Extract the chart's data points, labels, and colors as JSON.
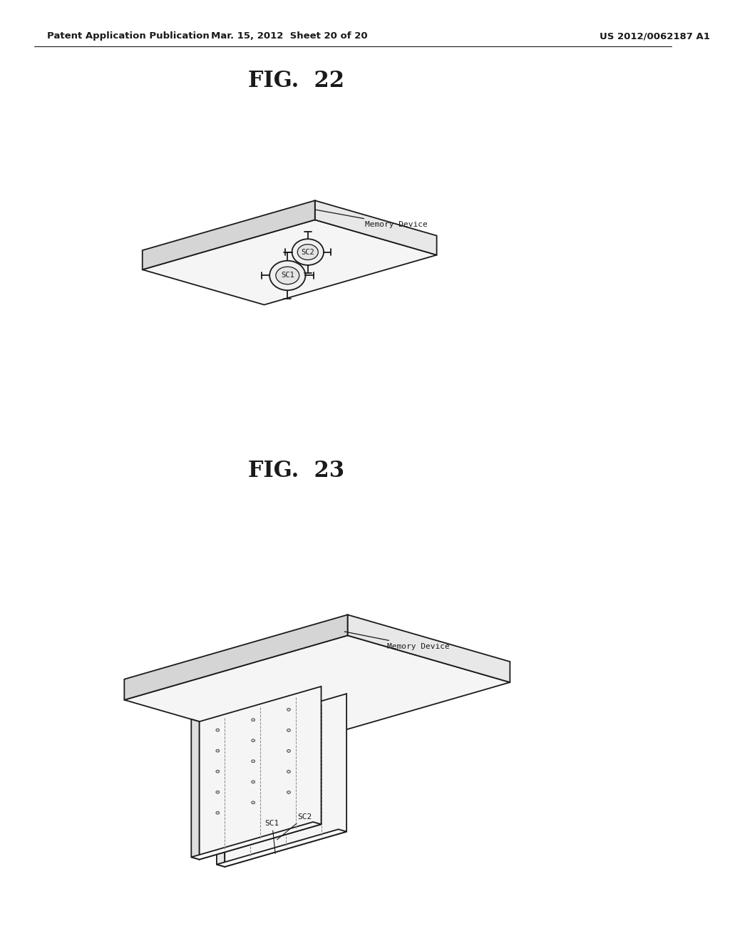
{
  "background_color": "#ffffff",
  "line_color": "#1a1a1a",
  "face_light": "#f5f5f5",
  "face_mid": "#e8e8e8",
  "face_dark": "#d5d5d5",
  "header_left": "Patent Application Publication",
  "header_mid": "Mar. 15, 2012  Sheet 20 of 20",
  "header_right": "US 2012/0062187 A1",
  "fig22_title": "FIG.  22",
  "fig23_title": "FIG.  23",
  "memory_device_label": "Memory Device",
  "sc1_label": "SC1",
  "sc2_label": "SC2"
}
